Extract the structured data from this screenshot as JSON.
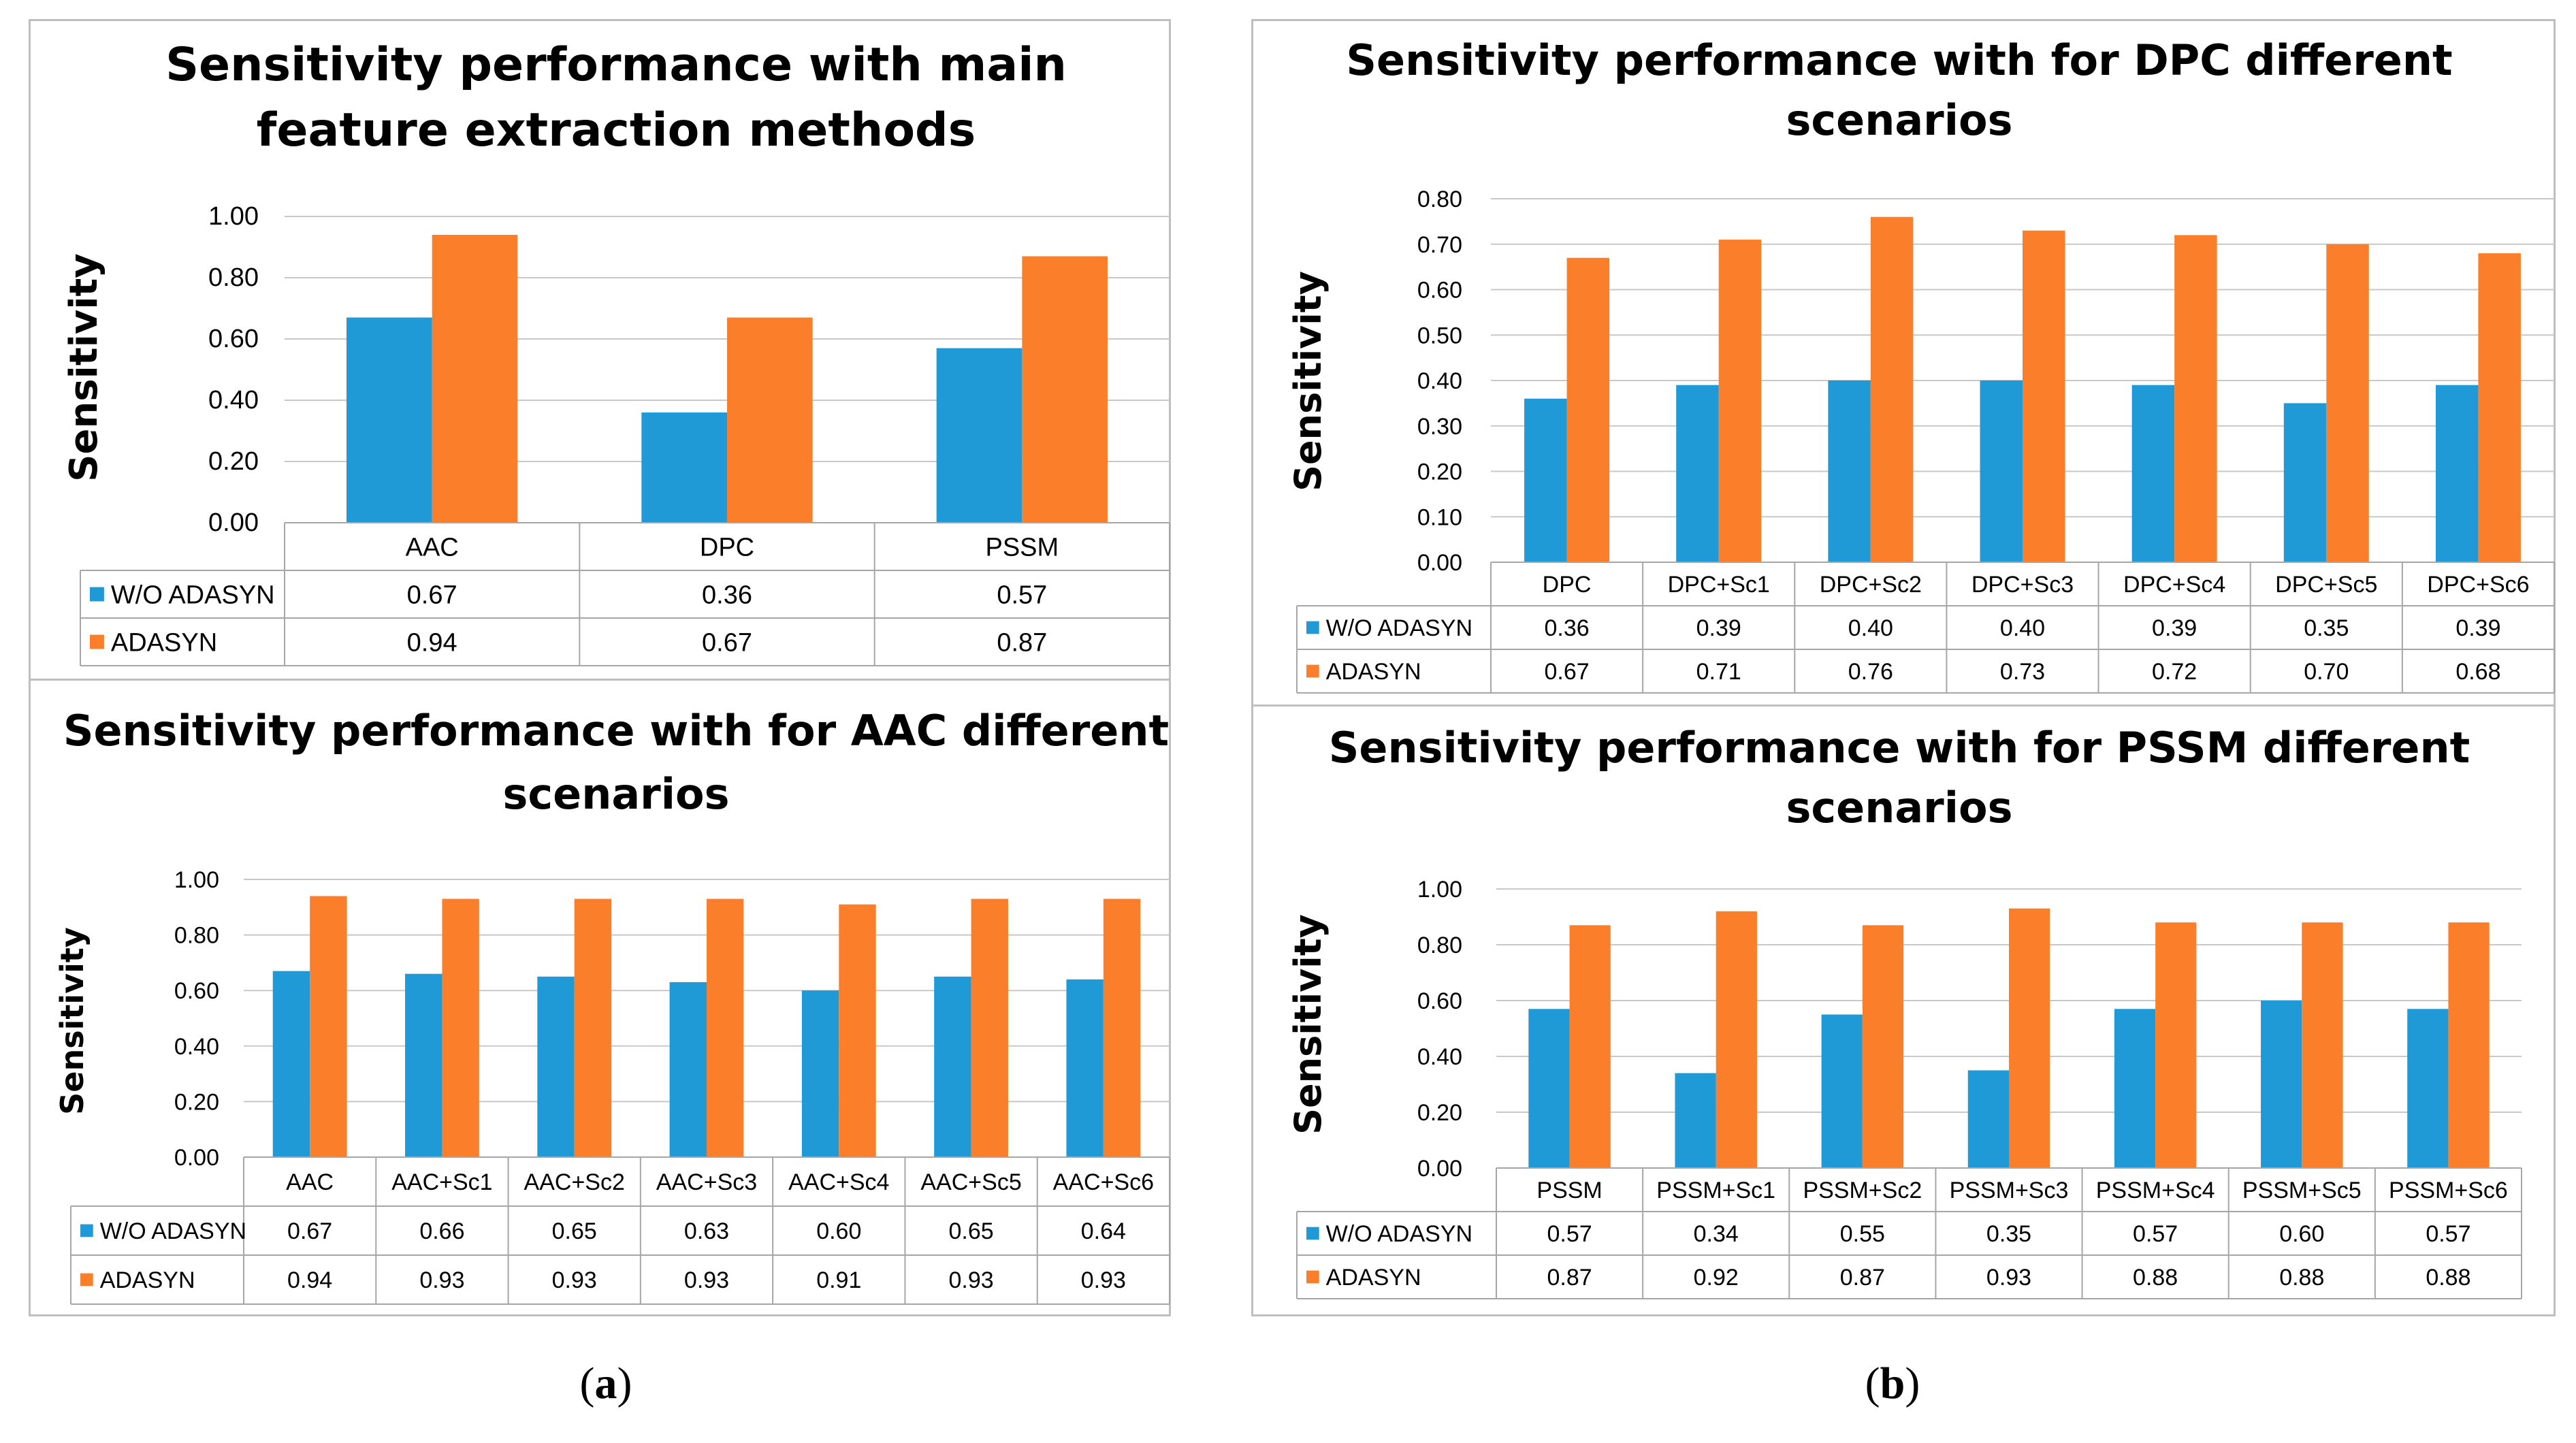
{
  "colors": {
    "series1": "#1f9ad6",
    "series2": "#fb7f2a",
    "grid": "#c8c8c8",
    "table_border": "#a6a6a6"
  },
  "panel_labels": {
    "a": "a",
    "b": "b"
  },
  "chart_data": [
    {
      "type": "bar",
      "title": [
        "Sensitivity performance with main",
        "feature extraction methods"
      ],
      "ylabel": "Sensitivity",
      "ylim": [
        0,
        1.0
      ],
      "yticks": [
        "0.00",
        "0.20",
        "0.40",
        "0.60",
        "0.80",
        "1.00"
      ],
      "categories": [
        "AAC",
        "DPC",
        "PSSM"
      ],
      "series": [
        {
          "name": "W/O ADASYN",
          "values": [
            0.67,
            0.36,
            0.57
          ],
          "labels": [
            "0.67",
            "0.36",
            "0.57"
          ]
        },
        {
          "name": "ADASYN",
          "values": [
            0.94,
            0.67,
            0.87
          ],
          "labels": [
            "0.94",
            "0.67",
            "0.87"
          ]
        }
      ]
    },
    {
      "type": "bar",
      "title": [
        "Sensitivity performance with for AAC different",
        "scenarios"
      ],
      "ylabel": "Sensitivity",
      "ylim": [
        0,
        1.0
      ],
      "yticks": [
        "0.00",
        "0.20",
        "0.40",
        "0.60",
        "0.80",
        "1.00"
      ],
      "categories": [
        "AAC",
        "AAC+Sc1",
        "AAC+Sc2",
        "AAC+Sc3",
        "AAC+Sc4",
        "AAC+Sc5",
        "AAC+Sc6"
      ],
      "series": [
        {
          "name": "W/O ADASYN",
          "values": [
            0.67,
            0.66,
            0.65,
            0.63,
            0.6,
            0.65,
            0.64
          ],
          "labels": [
            "0.67",
            "0.66",
            "0.65",
            "0.63",
            "0.60",
            "0.65",
            "0.64"
          ]
        },
        {
          "name": "ADASYN",
          "values": [
            0.94,
            0.93,
            0.93,
            0.93,
            0.91,
            0.93,
            0.93
          ],
          "labels": [
            "0.94",
            "0.93",
            "0.93",
            "0.93",
            "0.91",
            "0.93",
            "0.93"
          ]
        }
      ]
    },
    {
      "type": "bar",
      "title": [
        "Sensitivity performance with for DPC different",
        "scenarios"
      ],
      "ylabel": "Sensitivity",
      "ylim": [
        0,
        0.8
      ],
      "yticks": [
        "0.00",
        "0.10",
        "0.20",
        "0.30",
        "0.40",
        "0.50",
        "0.60",
        "0.70",
        "0.80"
      ],
      "categories": [
        "DPC",
        "DPC+Sc1",
        "DPC+Sc2",
        "DPC+Sc3",
        "DPC+Sc4",
        "DPC+Sc5",
        "DPC+Sc6"
      ],
      "series": [
        {
          "name": "W/O ADASYN",
          "values": [
            0.36,
            0.39,
            0.4,
            0.4,
            0.39,
            0.35,
            0.39
          ],
          "labels": [
            "0.36",
            "0.39",
            "0.40",
            "0.40",
            "0.39",
            "0.35",
            "0.39"
          ]
        },
        {
          "name": "ADASYN",
          "values": [
            0.67,
            0.71,
            0.76,
            0.73,
            0.72,
            0.7,
            0.68
          ],
          "labels": [
            "0.67",
            "0.71",
            "0.76",
            "0.73",
            "0.72",
            "0.70",
            "0.68"
          ]
        }
      ]
    },
    {
      "type": "bar",
      "title": [
        "Sensitivity performance with for PSSM different",
        "scenarios"
      ],
      "ylabel": "Sensitivity",
      "ylim": [
        0,
        1.0
      ],
      "yticks": [
        "0.00",
        "0.20",
        "0.40",
        "0.60",
        "0.80",
        "1.00"
      ],
      "categories": [
        "PSSM",
        "PSSM+Sc1",
        "PSSM+Sc2",
        "PSSM+Sc3",
        "PSSM+Sc4",
        "PSSM+Sc5",
        "PSSM+Sc6"
      ],
      "series": [
        {
          "name": "W/O ADASYN",
          "values": [
            0.57,
            0.34,
            0.55,
            0.35,
            0.57,
            0.6,
            0.57
          ],
          "labels": [
            "0.57",
            "0.34",
            "0.55",
            "0.35",
            "0.57",
            "0.60",
            "0.57"
          ]
        },
        {
          "name": "ADASYN",
          "values": [
            0.87,
            0.92,
            0.87,
            0.93,
            0.88,
            0.88,
            0.88
          ],
          "labels": [
            "0.87",
            "0.92",
            "0.87",
            "0.93",
            "0.88",
            "0.88",
            "0.88"
          ]
        }
      ]
    }
  ]
}
